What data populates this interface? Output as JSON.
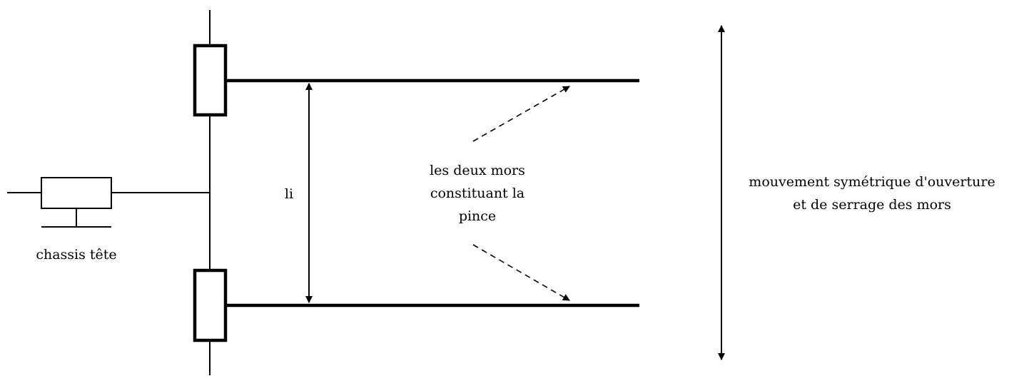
{
  "labels": {
    "chassis": "chassis tête",
    "li": "li",
    "mors_line1": "les deux mors",
    "mors_line2": "constituant la",
    "mors_line3": "pince",
    "mouvement_line1": "mouvement symétrique d'ouverture",
    "mouvement_line2": "et de serrage des mors"
  },
  "colors": {
    "stroke": "#000000",
    "background": "#ffffff"
  }
}
